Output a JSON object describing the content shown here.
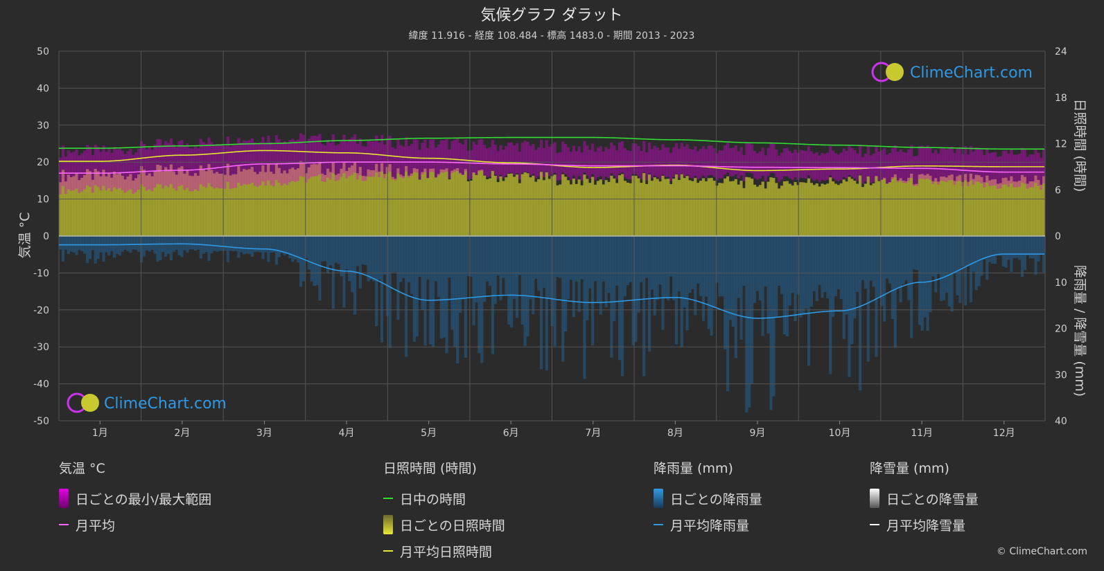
{
  "title": "気候グラフ ダラット",
  "subtitle": "緯度 11.916 - 経度 108.484 - 標高 1483.0 - 期間 2013 - 2023",
  "brand": "ClimeChart.com",
  "copyright": "© ClimeChart.com",
  "colors": {
    "background": "#2b2b2b",
    "temp_range": "#e000e0",
    "temp_avg": "#ff66ff",
    "daylight": "#33dd33",
    "sunshine_daily": "#b8b830",
    "sunshine_avg": "#e8e830",
    "rain_daily": "#1f6fb0",
    "rain_avg": "#2e9ae6",
    "snow": "#ffffff"
  },
  "chart_data": {
    "type": "line",
    "x_categories": [
      "1月",
      "2月",
      "3月",
      "4月",
      "5月",
      "6月",
      "7月",
      "8月",
      "9月",
      "10月",
      "11月",
      "12月"
    ],
    "y_left": {
      "label": "気温 °C",
      "range": [
        -50,
        50
      ],
      "ticks": [
        50,
        40,
        30,
        20,
        10,
        0,
        -10,
        -20,
        -30,
        -40,
        -50
      ]
    },
    "y_right_top": {
      "label": "日照時間 (時間)",
      "range": [
        0,
        24
      ],
      "ticks": [
        24,
        18,
        12,
        6,
        0
      ]
    },
    "y_right_bottom": {
      "label": "降雨量 / 降雪量 (mm)",
      "range": [
        0,
        40
      ],
      "ticks": [
        0,
        10,
        20,
        30,
        40
      ]
    },
    "series": [
      {
        "name": "日中の時間",
        "unit": "hours",
        "values": [
          11.4,
          11.7,
          12.0,
          12.4,
          12.7,
          12.8,
          12.8,
          12.5,
          12.1,
          11.8,
          11.5,
          11.3
        ]
      },
      {
        "name": "月平均日照時間",
        "unit": "hours",
        "values": [
          9.7,
          10.5,
          11.1,
          10.8,
          10.1,
          9.5,
          8.9,
          9.2,
          8.5,
          8.7,
          9.1,
          9.0
        ]
      },
      {
        "name": "月平均",
        "unit": "°C",
        "values": [
          17.0,
          17.8,
          19.5,
          20.0,
          20.0,
          19.5,
          19.0,
          19.0,
          18.6,
          18.5,
          18.3,
          17.3
        ]
      },
      {
        "name": "月平均降雨量",
        "unit": "mm",
        "values": [
          1.9,
          1.7,
          2.8,
          7.6,
          13.9,
          12.8,
          14.4,
          13.3,
          17.8,
          16.2,
          10.0,
          3.9
        ]
      },
      {
        "name": "月平均降雪量",
        "unit": "mm",
        "values": [
          0,
          0,
          0,
          0,
          0,
          0,
          0,
          0,
          0,
          0,
          0,
          0
        ]
      },
      {
        "name": "日ごとの最小/最大範囲",
        "unit": "°C",
        "min": [
          12.5,
          13.0,
          14.5,
          16.0,
          16.5,
          16.5,
          16.0,
          16.0,
          16.0,
          15.5,
          14.5,
          13.5
        ],
        "max": [
          23.0,
          25.0,
          26.5,
          26.0,
          25.0,
          24.5,
          24.0,
          24.0,
          23.5,
          23.0,
          23.0,
          22.5
        ]
      }
    ]
  },
  "legend": {
    "temp": {
      "header": "気温 °C",
      "items": [
        "日ごとの最小/最大範囲",
        "月平均"
      ]
    },
    "sun": {
      "header": "日照時間 (時間)",
      "items": [
        "日中の時間",
        "日ごとの日照時間",
        "月平均日照時間"
      ]
    },
    "rain": {
      "header": "降雨量 (mm)",
      "items": [
        "日ごとの降雨量",
        "月平均降雨量"
      ]
    },
    "snow": {
      "header": "降雪量 (mm)",
      "items": [
        "日ごとの降雪量",
        "月平均降雪量"
      ]
    }
  }
}
